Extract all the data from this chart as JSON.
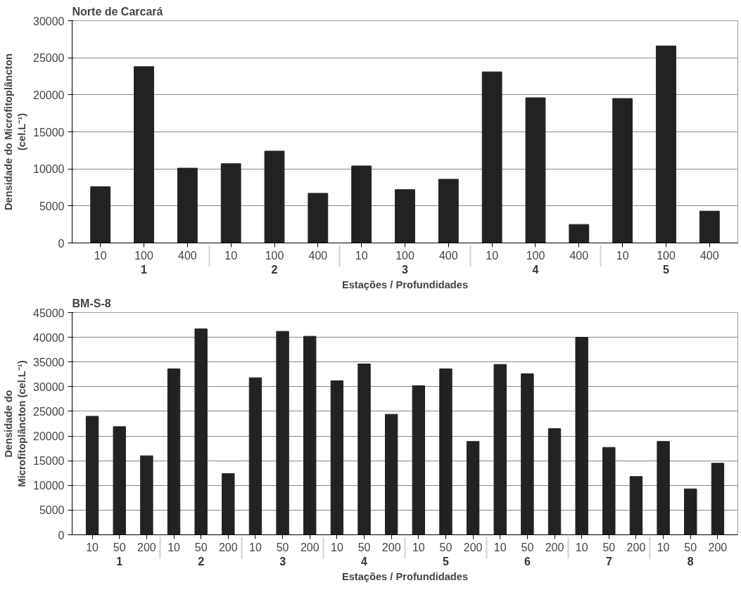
{
  "chart_data": [
    {
      "type": "bar",
      "title": "Norte de Carcará",
      "xlabel": "Estações / Profundidades",
      "ylabel": "Densidade do Microfitoplâncton\n(cel.L⁻¹)",
      "categories": [
        "10",
        "100",
        "400",
        "10",
        "100",
        "400",
        "10",
        "100",
        "400",
        "10",
        "100",
        "400",
        "10",
        "100",
        "400"
      ],
      "annotations": [
        "1",
        "2",
        "3",
        "4",
        "5"
      ],
      "values": [
        7600,
        23800,
        10100,
        10700,
        12400,
        6700,
        10400,
        7200,
        8600,
        23100,
        19600,
        2500,
        19500,
        26600,
        4300
      ],
      "color": "#222222",
      "ylim": [
        0,
        30000
      ],
      "yticks": [
        0,
        5000,
        10000,
        15000,
        20000,
        25000,
        30000
      ],
      "grid": "y"
    },
    {
      "type": "bar",
      "title": "BM-S-8",
      "xlabel": "Estações / Profundidades",
      "ylabel": "Densidade do\nMicrofitoplâncton (cel.L⁻¹)",
      "categories": [
        "10",
        "50",
        "200",
        "10",
        "50",
        "200",
        "10",
        "50",
        "200",
        "10",
        "50",
        "200",
        "10",
        "50",
        "200",
        "10",
        "50",
        "200",
        "10",
        "50",
        "200",
        "10",
        "50",
        "200"
      ],
      "annotations": [
        "1",
        "2",
        "3",
        "4",
        "5",
        "6",
        "7",
        "8"
      ],
      "values": [
        24000,
        21900,
        16000,
        33600,
        41700,
        12400,
        31800,
        41200,
        40200,
        31200,
        34600,
        24400,
        30200,
        33600,
        18900,
        34500,
        32600,
        21500,
        40000,
        17700,
        11800,
        18900,
        9300,
        14500
      ],
      "color": "#222222",
      "ylim": [
        0,
        45000
      ],
      "yticks": [
        0,
        5000,
        10000,
        15000,
        20000,
        25000,
        30000,
        35000,
        40000,
        45000
      ],
      "grid": "y"
    }
  ]
}
